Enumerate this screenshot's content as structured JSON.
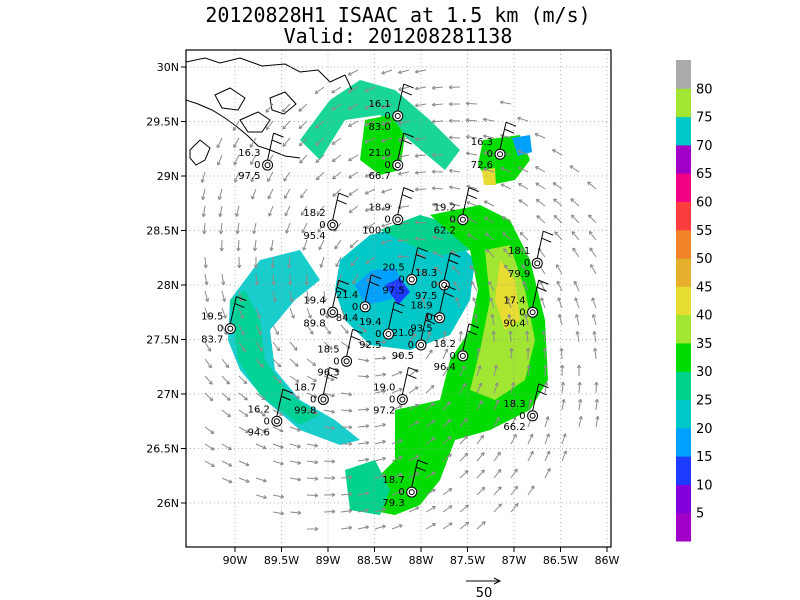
{
  "title_line1": "20120828H1 ISAAC at 1.5 km (m/s)",
  "title_line2": "Valid: 201208281138",
  "chart_data": {
    "type": "map",
    "lon_ticks": [
      "90W",
      "89.5W",
      "89W",
      "88.5W",
      "88W",
      "87.5W",
      "87W",
      "86.5W",
      "86W"
    ],
    "lat_ticks": [
      "30N",
      "29.5N",
      "29N",
      "28.5N",
      "28N",
      "27.5N",
      "27N",
      "26.5N",
      "26N"
    ],
    "colorbar_labels": [
      "5",
      "10",
      "15",
      "20",
      "25",
      "30",
      "35",
      "40",
      "45",
      "50",
      "55",
      "60",
      "65",
      "70",
      "75",
      "80"
    ],
    "colorbar_colors": [
      "#a000c8",
      "#8200dc",
      "#1e3cff",
      "#00a0ff",
      "#00c8c8",
      "#00d28c",
      "#00dc00",
      "#a0e632",
      "#e6dc32",
      "#e6af2d",
      "#f08228",
      "#fa3c3c",
      "#f00082",
      "#a000c8",
      "#00c8c8",
      "#a0e632",
      "#aaaaaa"
    ],
    "reference_vector": "50",
    "stations": [
      {
        "lon": -89.65,
        "lat": 29.1,
        "speed": "16.3",
        "dir": "0",
        "p": "97.5"
      },
      {
        "lon": -88.25,
        "lat": 29.55,
        "speed": "16.1",
        "dir": "0",
        "p": "83.0"
      },
      {
        "lon": -88.25,
        "lat": 29.1,
        "speed": "21.0",
        "dir": "0",
        "p": "66.7"
      },
      {
        "lon": -87.15,
        "lat": 29.2,
        "speed": "16.3",
        "dir": "0",
        "p": "72.6"
      },
      {
        "lon": -88.95,
        "lat": 28.55,
        "speed": "18.2",
        "dir": "0",
        "p": "95.4"
      },
      {
        "lon": -88.25,
        "lat": 28.6,
        "speed": "18.9",
        "dir": "0",
        "p": "100.0"
      },
      {
        "lon": -87.55,
        "lat": 28.6,
        "speed": "19.2",
        "dir": "0",
        "p": "62.2"
      },
      {
        "lon": -86.75,
        "lat": 28.2,
        "speed": "18.1",
        "dir": "0",
        "p": "79.9"
      },
      {
        "lon": -88.1,
        "lat": 28.05,
        "speed": "20.5",
        "dir": "0",
        "p": "97.5"
      },
      {
        "lon": -87.75,
        "lat": 28.0,
        "speed": "18.3",
        "dir": "0",
        "p": "97.5"
      },
      {
        "lon": -88.6,
        "lat": 27.8,
        "speed": "21.4",
        "dir": "0",
        "p": "84.4"
      },
      {
        "lon": -88.95,
        "lat": 27.75,
        "speed": "19.4",
        "dir": "0",
        "p": "89.8"
      },
      {
        "lon": -87.8,
        "lat": 27.7,
        "speed": "18.9",
        "dir": "0",
        "p": "93.5"
      },
      {
        "lon": -86.8,
        "lat": 27.75,
        "speed": "17.4",
        "dir": "0",
        "p": "90.4"
      },
      {
        "lon": -90.05,
        "lat": 27.6,
        "speed": "19.5",
        "dir": "0",
        "p": "83.7"
      },
      {
        "lon": -88.35,
        "lat": 27.55,
        "speed": "19.4",
        "dir": "0",
        "p": "92.5"
      },
      {
        "lon": -88.0,
        "lat": 27.45,
        "speed": "21.0",
        "dir": "0",
        "p": "90.5"
      },
      {
        "lon": -88.8,
        "lat": 27.3,
        "speed": "18.5",
        "dir": "0",
        "p": "96.3"
      },
      {
        "lon": -87.55,
        "lat": 27.35,
        "speed": "18.2",
        "dir": "0",
        "p": "96.4"
      },
      {
        "lon": -89.05,
        "lat": 26.95,
        "speed": "18.7",
        "dir": "0",
        "p": "99.8"
      },
      {
        "lon": -88.2,
        "lat": 26.95,
        "speed": "19.0",
        "dir": "0",
        "p": "97.2"
      },
      {
        "lon": -89.55,
        "lat": 26.75,
        "speed": "16.2",
        "dir": "0",
        "p": "94.6"
      },
      {
        "lon": -86.8,
        "lat": 26.8,
        "speed": "18.3",
        "dir": "0",
        "p": "66.2"
      },
      {
        "lon": -88.1,
        "lat": 26.1,
        "speed": "18.7",
        "dir": "0",
        "p": "79.3"
      }
    ]
  }
}
